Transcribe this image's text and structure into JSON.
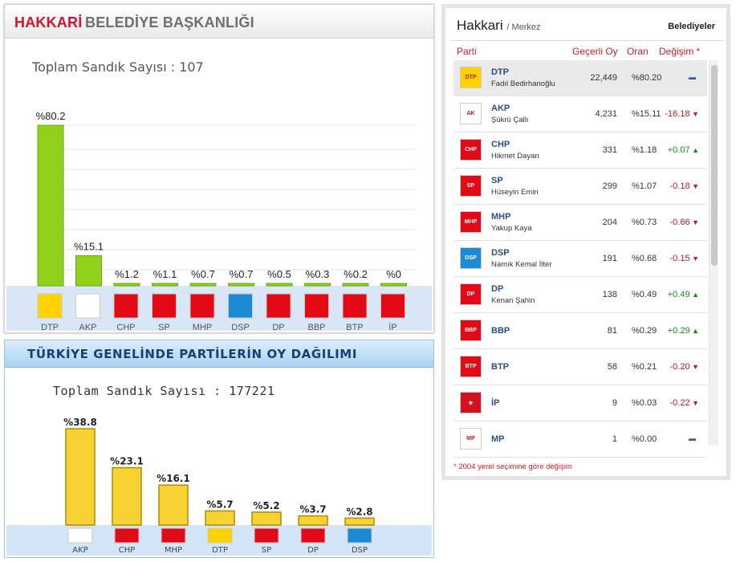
{
  "local": {
    "title_red": "HAKKARİ",
    "title_gray": "BELEDİYE BAŞKANLIĞI",
    "total": "Toplam Sandık Sayısı : 107",
    "chart_data": {
      "type": "bar",
      "categories": [
        "DTP",
        "AKP",
        "CHP",
        "SP",
        "MHP",
        "DSP",
        "DP",
        "BBP",
        "BTP",
        "İP"
      ],
      "values": [
        80.2,
        15.1,
        1.2,
        1.1,
        0.7,
        0.7,
        0.5,
        0.3,
        0.2,
        0
      ],
      "value_labels": [
        "%80.2",
        "%15.1",
        "%1.2",
        "%1.1",
        "%0.7",
        "%0.7",
        "%0.5",
        "%0.3",
        "%0.2",
        "%0"
      ],
      "ylim": [
        0,
        80.2
      ],
      "grid": true,
      "bar_color": "#8fd11b"
    }
  },
  "national": {
    "title": "TÜRKİYE GENELİNDE PARTİLERİN OY DAĞILIMI",
    "total": "Toplam Sandık Sayısı : 177221",
    "chart_data": {
      "type": "bar",
      "categories": [
        "AKP",
        "CHP",
        "MHP",
        "DTP",
        "SP",
        "DP",
        "DSP"
      ],
      "values": [
        38.8,
        23.1,
        16.1,
        5.7,
        5.2,
        3.7,
        2.8
      ],
      "value_labels": [
        "%38.8",
        "%23.1",
        "%16.1",
        "%5.7",
        "%5.2",
        "%3.7",
        "%2.8"
      ],
      "ylim": [
        0,
        38.8
      ],
      "bar_color": "#f7d233"
    }
  },
  "results": {
    "city": "Hakkari",
    "district": "/ Merkez",
    "tab": "Belediyeler",
    "headers": {
      "party": "Parti",
      "valid": "Geçerli Oy",
      "ratio": "Oran",
      "change": "Değişim *"
    },
    "rows": [
      {
        "party": "DTP",
        "candidate": "Fadıl Bedirhanoğlu",
        "votes": "22,449",
        "ratio": "%80.20",
        "change": "",
        "dir": "neu",
        "logo_color": "#ffd200",
        "logo_text": "DTP"
      },
      {
        "party": "AKP",
        "candidate": "Şükrü Çallı",
        "votes": "4,231",
        "ratio": "%15.11",
        "change": "-16.18",
        "dir": "neg",
        "logo_color": "#ffffff",
        "logo_text": "AK"
      },
      {
        "party": "CHP",
        "candidate": "Hikmet Dayan",
        "votes": "331",
        "ratio": "%1.18",
        "change": "+0.07",
        "dir": "pos",
        "logo_color": "#e30a17",
        "logo_text": "CHP"
      },
      {
        "party": "SP",
        "candidate": "Hüseyin Emin",
        "votes": "299",
        "ratio": "%1.07",
        "change": "-0.18",
        "dir": "neg",
        "logo_color": "#e30a17",
        "logo_text": "SP"
      },
      {
        "party": "MHP",
        "candidate": "Yakup Kaya",
        "votes": "204",
        "ratio": "%0.73",
        "change": "-0.66",
        "dir": "neg",
        "logo_color": "#e30a17",
        "logo_text": "MHP"
      },
      {
        "party": "DSP",
        "candidate": "Namık Kemal İlter",
        "votes": "191",
        "ratio": "%0.68",
        "change": "-0.15",
        "dir": "neg",
        "logo_color": "#1d8ad6",
        "logo_text": "DSP"
      },
      {
        "party": "DP",
        "candidate": "Kenan Şahin",
        "votes": "138",
        "ratio": "%0.49",
        "change": "+0.49",
        "dir": "pos",
        "logo_color": "#e30a17",
        "logo_text": "DP"
      },
      {
        "party": "BBP",
        "candidate": "",
        "votes": "81",
        "ratio": "%0.29",
        "change": "+0.29",
        "dir": "pos",
        "logo_color": "#e30a17",
        "logo_text": "BBP"
      },
      {
        "party": "BTP",
        "candidate": "",
        "votes": "58",
        "ratio": "%0.21",
        "change": "-0.20",
        "dir": "neg",
        "logo_color": "#e30a17",
        "logo_text": "BTP"
      },
      {
        "party": "İP",
        "candidate": "",
        "votes": "9",
        "ratio": "%0.03",
        "change": "-0.22",
        "dir": "neg",
        "logo_color": "#d2121e",
        "logo_text": "★"
      },
      {
        "party": "MP",
        "candidate": "",
        "votes": "1",
        "ratio": "%0.00",
        "change": "",
        "dir": "neu",
        "logo_color": "#ffffff",
        "logo_text": "MP"
      }
    ],
    "footnote": "* 2004 yerel seçimine göre değişim"
  }
}
